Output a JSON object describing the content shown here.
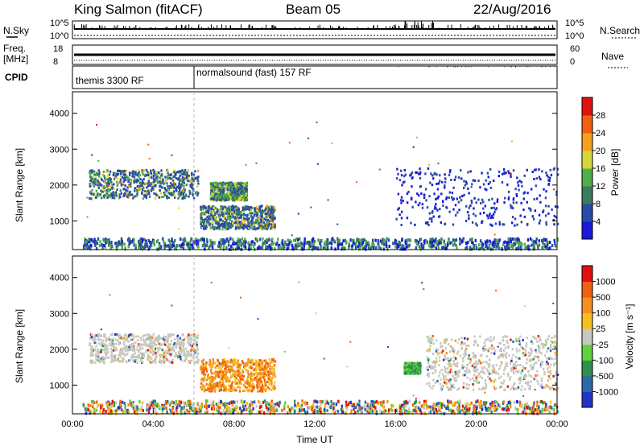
{
  "header": {
    "radar": "King Salmon (fitACF)",
    "beam": "Beam 05",
    "date": "22/Aug/2016"
  },
  "top_panels": {
    "nsky_label": "N.Sky",
    "nsearch_label": "N.Search",
    "noise_ticks": [
      "10^5",
      "10^0"
    ],
    "freq_label_1": "Freq.",
    "freq_label_2": "[MHz]",
    "freq_ticks": [
      "18",
      "8"
    ],
    "nave_label": "Nave",
    "nave_ticks": [
      "60",
      "0"
    ],
    "cpid_label": "CPID",
    "cpid_segments": [
      {
        "label": "themis 3300 RF",
        "start_hour": 0
      },
      {
        "label": "normalsound (fast) 157 RF",
        "start_hour": 6
      }
    ]
  },
  "colorbars": {
    "power": {
      "label": "Power [dB]",
      "ticks": [
        "28",
        "24",
        "20",
        "16",
        "12",
        "8",
        "4"
      ],
      "colors": [
        "#1a1ad8",
        "#2a4aa8",
        "#3a7d5c",
        "#4fae4a",
        "#d6d83a",
        "#f4a020",
        "#f06010",
        "#e01010"
      ]
    },
    "velocity": {
      "label": "Velocity [m s⁻¹]",
      "ticks": [
        "1000",
        "500",
        "100",
        "25",
        "-25",
        "-100",
        "-500",
        "-1000"
      ],
      "colors": [
        "#2233c8",
        "#2a6aa8",
        "#2f8f4f",
        "#5fd040",
        "#c8c8c0",
        "#f4c020",
        "#f49020",
        "#f06010",
        "#e01010"
      ]
    }
  },
  "chart_data": [
    {
      "type": "heatmap",
      "name": "power",
      "ylabel": "Slant Range [km]",
      "xlabel": "",
      "ylim": [
        200,
        4600
      ],
      "yticks": [
        "1000",
        "2000",
        "3000",
        "4000"
      ],
      "xlim_hours": [
        0,
        24
      ],
      "regions": [
        {
          "t0": 0.8,
          "t1": 6.2,
          "r0": 1650,
          "r1": 2450,
          "level": "mixed-high"
        },
        {
          "t0": 6.3,
          "t1": 10.0,
          "r0": 800,
          "r1": 1450,
          "level": "mixed-high"
        },
        {
          "t0": 6.8,
          "t1": 8.6,
          "r0": 1600,
          "r1": 2100,
          "level": "mixed"
        },
        {
          "t0": 16.0,
          "t1": 24.0,
          "r0": 900,
          "r1": 2500,
          "level": "low"
        },
        {
          "t0": 0.5,
          "t1": 24.0,
          "r0": 250,
          "r1": 550,
          "level": "near-range"
        }
      ]
    },
    {
      "type": "heatmap",
      "name": "velocity",
      "ylabel": "Slant Range [km]",
      "xlabel": "Time UT",
      "ylim": [
        200,
        4600
      ],
      "yticks": [
        "1000",
        "2000",
        "3000",
        "4000"
      ],
      "xticks": [
        "00:00",
        "04:00",
        "08:00",
        "12:00",
        "16:00",
        "20:00",
        "00:00"
      ],
      "xlim_hours": [
        0,
        24
      ],
      "regions": [
        {
          "t0": 0.8,
          "t1": 6.2,
          "r0": 1650,
          "r1": 2450,
          "level": "gray"
        },
        {
          "t0": 6.3,
          "t1": 10.0,
          "r0": 850,
          "r1": 1750,
          "level": "orange"
        },
        {
          "t0": 16.4,
          "t1": 17.2,
          "r0": 1350,
          "r1": 1650,
          "level": "green"
        },
        {
          "t0": 17.5,
          "t1": 24.0,
          "r0": 900,
          "r1": 2400,
          "level": "gray"
        },
        {
          "t0": 0.5,
          "t1": 24.0,
          "r0": 250,
          "r1": 600,
          "level": "near-range"
        }
      ]
    }
  ]
}
